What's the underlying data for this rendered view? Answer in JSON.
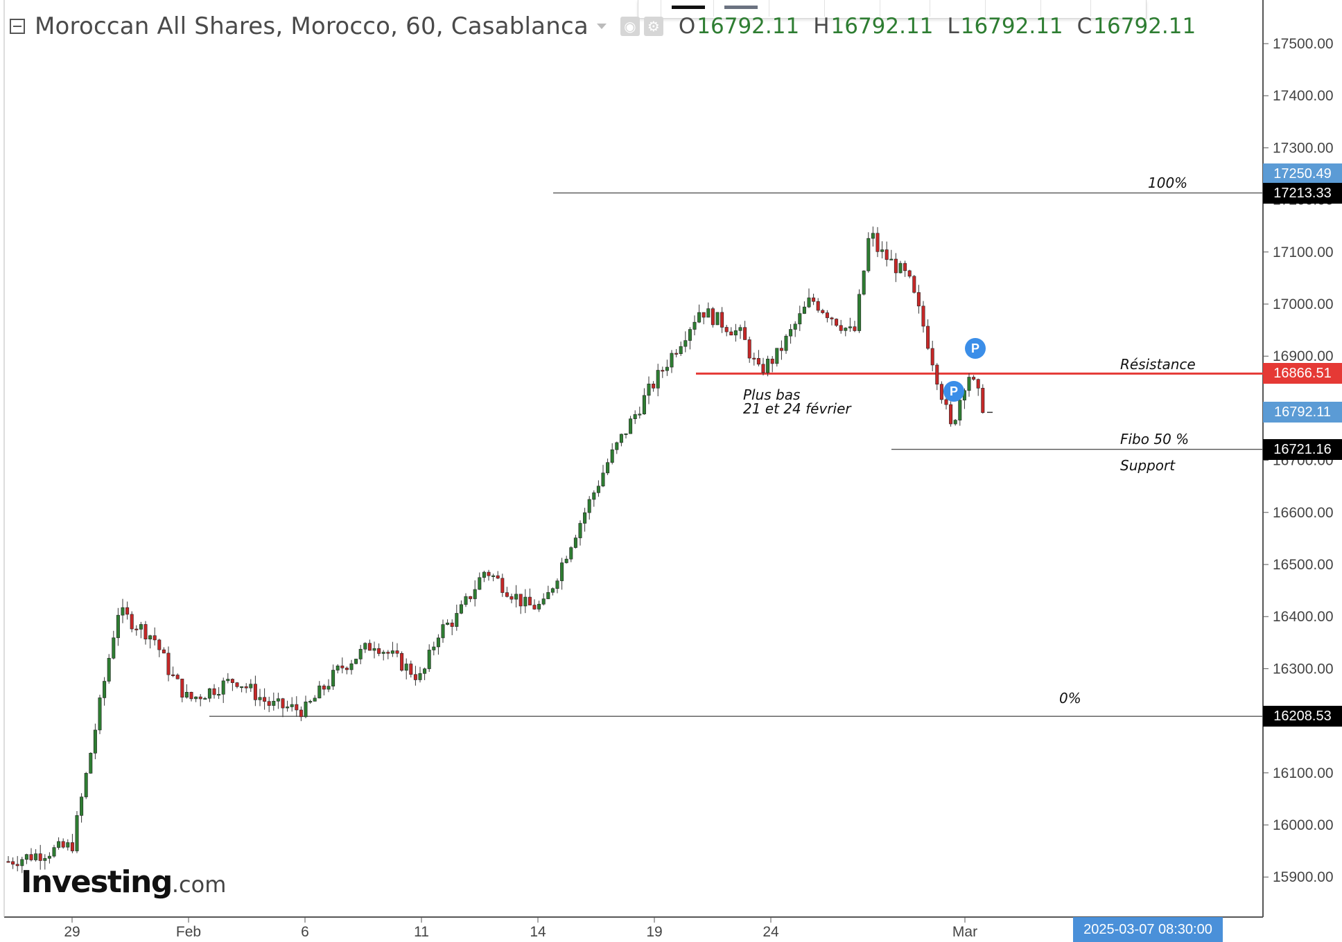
{
  "header": {
    "title": "Moroccan All Shares, Morocco, 60, Casablanca",
    "collapse_icon": "minus-box-icon",
    "eye_icon": "eye-icon",
    "settings_icon": "gear-icon",
    "ohlc": [
      {
        "label": "O",
        "value": "16792.11"
      },
      {
        "label": "H",
        "value": "16792.11"
      },
      {
        "label": "L",
        "value": "16792.11"
      },
      {
        "label": "C",
        "value": "16792.11"
      }
    ]
  },
  "price_tags": [
    {
      "text": "17250.49",
      "color": "#5b9bd5",
      "value": 17250.49
    },
    {
      "text": "17213.33",
      "color": "#000000",
      "value": 17213.33
    },
    {
      "text": "16866.51",
      "color": "#e53935",
      "value": 16866.51
    },
    {
      "text": "16792.11",
      "color": "#5b9bd5",
      "value": 16792.11
    },
    {
      "text": "16721.16",
      "color": "#000000",
      "value": 16721.16
    },
    {
      "text": "16208.53",
      "color": "#000000",
      "value": 16208.53
    }
  ],
  "date_label": "2025-03-07 08:30:00",
  "watermark": {
    "brand": "Investing",
    "suffix": ".com"
  },
  "annotations": {
    "fib_100": "100%",
    "fib_0": "0%",
    "resistance": "Résistance",
    "plus_bas_1": "Plus bas",
    "plus_bas_2": "21 et 24 février",
    "fibo_50": "Fibo 50 %",
    "support": "Support",
    "pin_label": "P"
  },
  "colors": {
    "up": "#2e7d32",
    "down": "#c62828",
    "resistance": "#e53935",
    "axis": "#555555"
  },
  "chart_data": {
    "type": "candlestick",
    "title": "Moroccan All Shares, Morocco, 60, Casablanca",
    "xlabel": "",
    "ylabel": "",
    "ylim": [
      15830,
      17580
    ],
    "grid": false,
    "x_ticks": [
      "29",
      "Feb",
      "6",
      "11",
      "14",
      "19",
      "24",
      "Mar"
    ],
    "y_ticks": [
      "17500.00",
      "17400.00",
      "17300.00",
      "17200.00",
      "17100.00",
      "17000.00",
      "16900.00",
      "16800.00",
      "16700.00",
      "16600.00",
      "16500.00",
      "16400.00",
      "16300.00",
      "16200.00",
      "16100.00",
      "16000.00",
      "15900.00"
    ],
    "ohlc_close_path": [
      [
        "Jan 28",
        15930
      ],
      [
        "Jan 29",
        15960
      ],
      [
        "Jan 29",
        16120
      ],
      [
        "Jan 30",
        16410
      ],
      [
        "Jan 31",
        16360
      ],
      [
        "Jan 31",
        16290
      ],
      [
        "Feb 3",
        16240
      ],
      [
        "Feb 4",
        16280
      ],
      [
        "Feb 5",
        16230
      ],
      [
        "Feb 6",
        16220
      ],
      [
        "Feb 7",
        16300
      ],
      [
        "Feb 10",
        16350
      ],
      [
        "Feb 11",
        16280
      ],
      [
        "Feb 11",
        16370
      ],
      [
        "Feb 12",
        16400
      ],
      [
        "Feb 13",
        16490
      ],
      [
        "Feb 14",
        16420
      ],
      [
        "Feb 14",
        16420
      ],
      [
        "Feb 17",
        16550
      ],
      [
        "Feb 18",
        16700
      ],
      [
        "Feb 19",
        16820
      ],
      [
        "Feb 20",
        16990
      ],
      [
        "Feb 21",
        16940
      ],
      [
        "Feb 21",
        16870
      ],
      [
        "Feb 24",
        16900
      ],
      [
        "Feb 25",
        17010
      ],
      [
        "Feb 26",
        16940
      ],
      [
        "Feb 26",
        17150
      ],
      [
        "Feb 27",
        17110
      ],
      [
        "Feb 28",
        17050
      ],
      [
        "Feb 28",
        16950
      ],
      [
        "Mar 3",
        16760
      ],
      [
        "Mar 3",
        16870
      ],
      [
        "Mar 4",
        16792
      ]
    ],
    "horizontal_levels": [
      {
        "name": "100%",
        "value": 17213.33
      },
      {
        "name": "Résistance",
        "value": 16866.51
      },
      {
        "name": "Fibo 50 %",
        "value": 16721.16
      },
      {
        "name": "0%",
        "value": 16208.53
      }
    ],
    "last_price": 16792.11,
    "crosshair_price": 17250.49
  }
}
